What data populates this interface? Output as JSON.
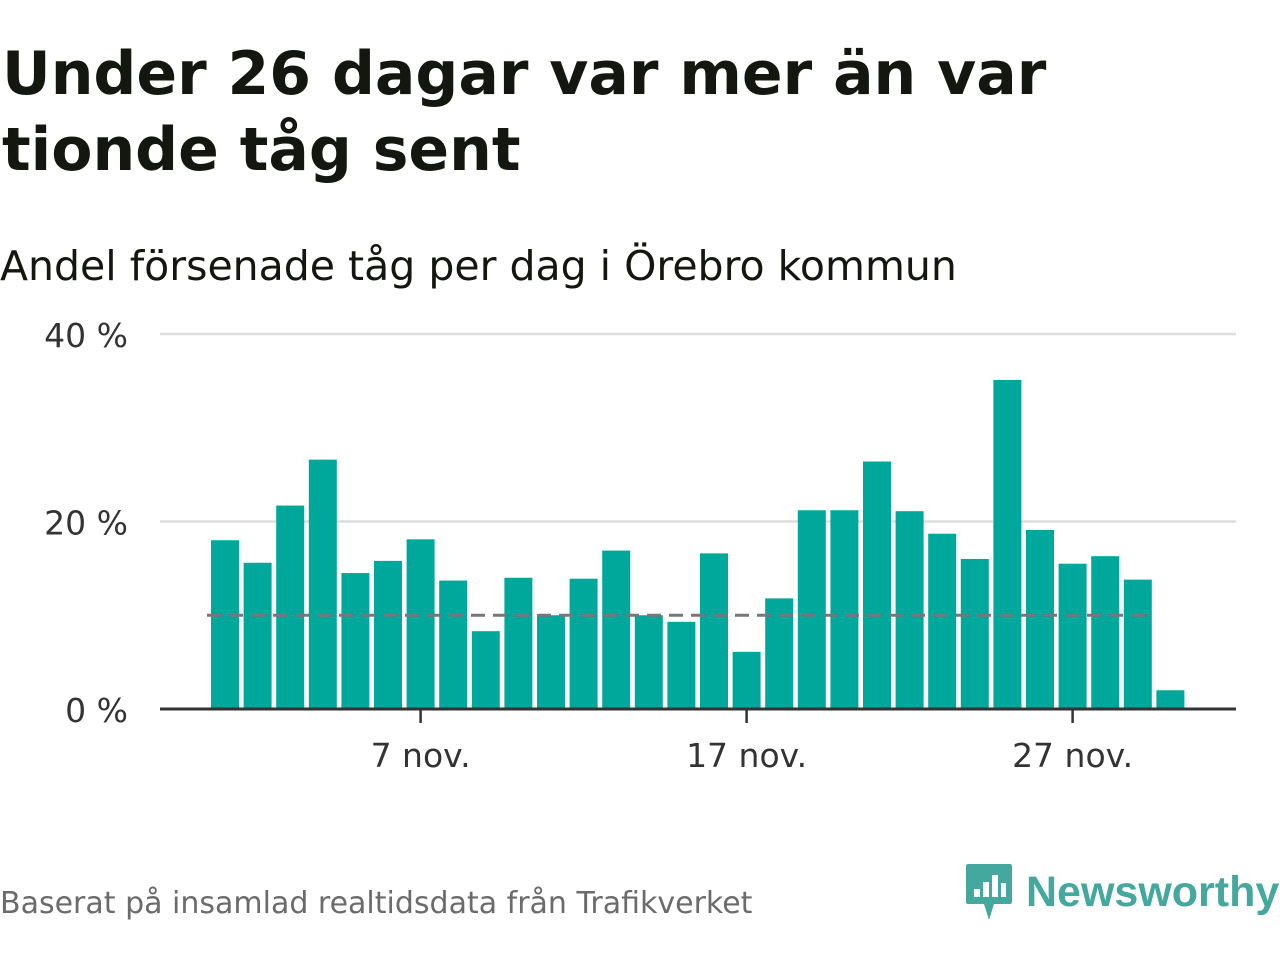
{
  "title": "Under 26 dagar var mer än var tionde tåg sent",
  "subtitle": "Andel försenade tåg per dag i Örebro kommun",
  "source": "Baserat på insamlad realtidsdata från Trafikverket",
  "brand": {
    "name": "Newsworthy",
    "icon": "newsworthy-logo-icon",
    "color": "#45a89e"
  },
  "colors": {
    "bar": "#00a89c",
    "reference": "#777777",
    "grid": "#dddddd",
    "axis": "#333333"
  },
  "chart_data": {
    "type": "bar",
    "x": [
      "2024-11-01",
      "2024-11-02",
      "2024-11-03",
      "2024-11-04",
      "2024-11-05",
      "2024-11-06",
      "2024-11-07",
      "2024-11-08",
      "2024-11-09",
      "2024-11-10",
      "2024-11-11",
      "2024-11-12",
      "2024-11-13",
      "2024-11-14",
      "2024-11-15",
      "2024-11-16",
      "2024-11-17",
      "2024-11-18",
      "2024-11-19",
      "2024-11-20",
      "2024-11-21",
      "2024-11-22",
      "2024-11-23",
      "2024-11-24",
      "2024-11-25",
      "2024-11-26",
      "2024-11-27",
      "2024-11-28",
      "2024-11-29",
      "2024-11-30"
    ],
    "values": [
      18,
      15.6,
      21.7,
      26.6,
      14.5,
      15.8,
      18.1,
      13.7,
      8.3,
      14,
      10,
      13.9,
      16.9,
      10,
      9.3,
      16.6,
      6.1,
      11.8,
      21.2,
      21.2,
      26.4,
      21.1,
      18.7,
      16,
      35.1,
      19.1,
      15.5,
      16.3,
      13.8,
      2
    ],
    "x_ticks": [
      {
        "x": "2024-11-07",
        "label": "7 nov."
      },
      {
        "x": "2024-11-17",
        "label": "17 nov."
      },
      {
        "x": "2024-11-27",
        "label": "27 nov."
      }
    ],
    "y_ticks": [
      {
        "value": 0,
        "label": "0 %"
      },
      {
        "value": 20,
        "label": "20 %"
      },
      {
        "value": 40,
        "label": "40 %"
      }
    ],
    "ylim": [
      0,
      40
    ],
    "reference_line": 10,
    "grid": true
  }
}
